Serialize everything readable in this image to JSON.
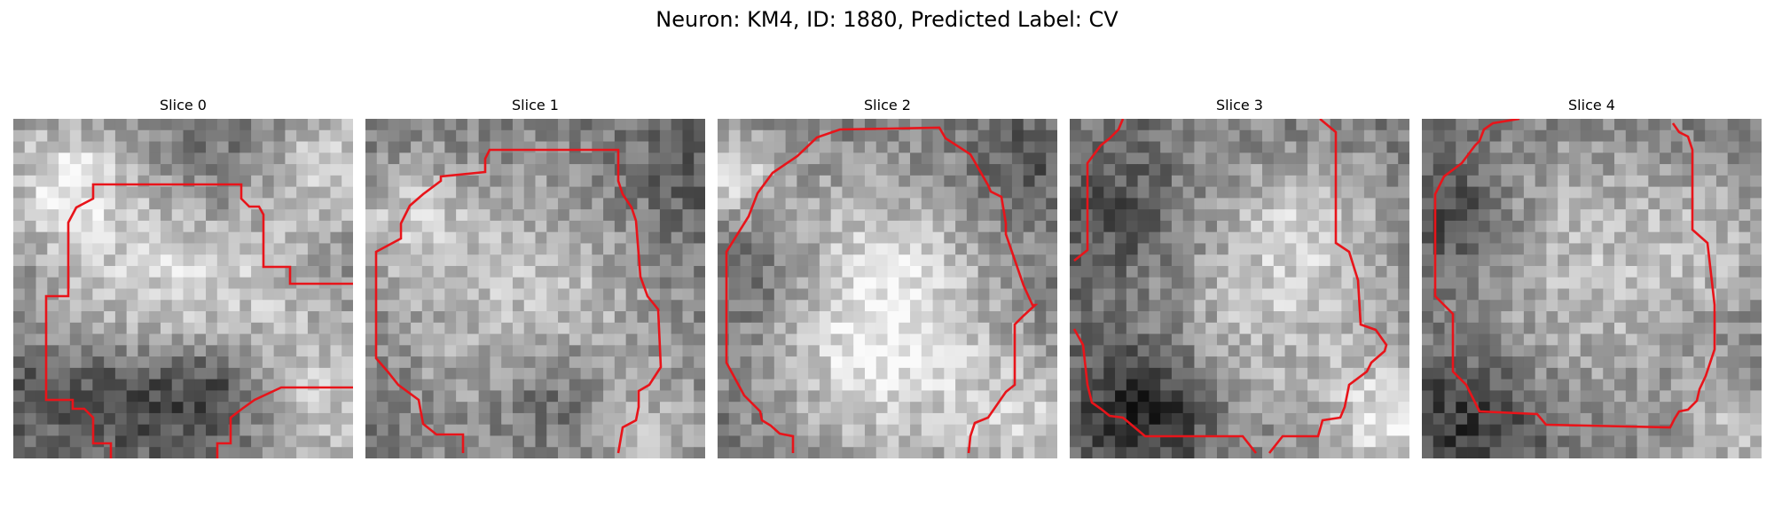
{
  "figure": {
    "suptitle": "Neuron: KM4, ID: 1880, Predicted Label: CV",
    "contour_color": "#e8141a",
    "colormap": "gray",
    "panels": [
      {
        "title": "Slice 0",
        "shade_seed": 11,
        "blobs": [
          [
            0.14,
            0.18,
            0.13,
            0.35
          ],
          [
            0.95,
            0.12,
            0.14,
            0.3
          ],
          [
            0.5,
            0.45,
            0.3,
            0.42
          ],
          [
            0.3,
            0.82,
            0.12,
            -0.28
          ],
          [
            0.58,
            0.8,
            0.13,
            -0.4
          ],
          [
            0.9,
            0.85,
            0.18,
            0.28
          ],
          [
            0.58,
            0.15,
            0.16,
            -0.2
          ],
          [
            0.05,
            0.8,
            0.1,
            -0.15
          ]
        ]
      },
      {
        "title": "Slice 1",
        "shade_seed": 23,
        "blobs": [
          [
            0.5,
            0.55,
            0.3,
            0.32
          ],
          [
            0.12,
            0.3,
            0.14,
            0.25
          ],
          [
            0.85,
            0.95,
            0.14,
            0.2
          ],
          [
            0.55,
            0.8,
            0.12,
            -0.22
          ],
          [
            0.92,
            0.2,
            0.15,
            -0.12
          ]
        ]
      },
      {
        "title": "Slice 2",
        "shade_seed": 37,
        "blobs": [
          [
            0.5,
            0.7,
            0.26,
            0.38
          ],
          [
            0.05,
            0.15,
            0.1,
            0.38
          ],
          [
            0.45,
            0.4,
            0.24,
            0.22
          ],
          [
            0.15,
            0.45,
            0.12,
            -0.18
          ],
          [
            0.92,
            0.9,
            0.14,
            0.28
          ],
          [
            0.9,
            0.12,
            0.1,
            -0.15
          ]
        ]
      },
      {
        "title": "Slice 3",
        "shade_seed": 41,
        "blobs": [
          [
            0.6,
            0.55,
            0.28,
            0.3
          ],
          [
            0.22,
            0.85,
            0.14,
            -0.38
          ],
          [
            0.15,
            0.3,
            0.14,
            -0.18
          ],
          [
            0.95,
            0.9,
            0.13,
            0.4
          ],
          [
            0.72,
            0.28,
            0.15,
            0.18
          ]
        ]
      },
      {
        "title": "Slice 4",
        "shade_seed": 53,
        "blobs": [
          [
            0.5,
            0.45,
            0.3,
            0.3
          ],
          [
            0.15,
            0.88,
            0.15,
            -0.28
          ],
          [
            0.1,
            0.3,
            0.12,
            -0.24
          ],
          [
            0.92,
            0.92,
            0.12,
            0.28
          ],
          [
            0.88,
            0.35,
            0.14,
            0.15
          ]
        ]
      }
    ]
  }
}
